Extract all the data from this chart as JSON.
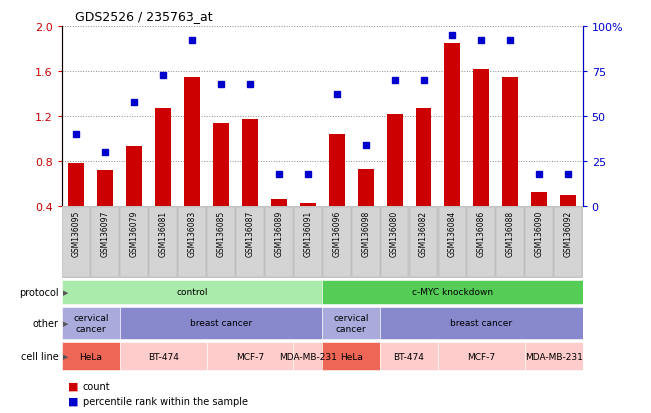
{
  "title": "GDS2526 / 235763_at",
  "samples": [
    "GSM136095",
    "GSM136097",
    "GSM136079",
    "GSM136081",
    "GSM136083",
    "GSM136085",
    "GSM136087",
    "GSM136089",
    "GSM136091",
    "GSM136096",
    "GSM136098",
    "GSM136080",
    "GSM136082",
    "GSM136084",
    "GSM136086",
    "GSM136088",
    "GSM136090",
    "GSM136092"
  ],
  "count_values": [
    0.78,
    0.72,
    0.93,
    1.27,
    1.55,
    1.14,
    1.17,
    0.46,
    0.43,
    1.04,
    0.73,
    1.22,
    1.27,
    1.85,
    1.62,
    1.55,
    0.52,
    0.5
  ],
  "percentile_values": [
    40,
    30,
    58,
    73,
    92,
    68,
    68,
    18,
    18,
    62,
    34,
    70,
    70,
    95,
    92,
    92,
    18,
    18
  ],
  "ylim": [
    0.4,
    2.0
  ],
  "yticks_left": [
    0.4,
    0.8,
    1.2,
    1.6,
    2.0
  ],
  "yticks_right": [
    0,
    25,
    50,
    75,
    100
  ],
  "bar_color": "#cc0000",
  "dot_color": "#0000cc",
  "plot_bg": "#ffffff",
  "xlabel_bg": "#cccccc",
  "protocol_row": {
    "label": "protocol",
    "groups": [
      {
        "text": "control",
        "start": 0,
        "end": 9,
        "color": "#aaeaaa"
      },
      {
        "text": "c-MYC knockdown",
        "start": 9,
        "end": 18,
        "color": "#55cc55"
      }
    ]
  },
  "other_row": {
    "label": "other",
    "groups": [
      {
        "text": "cervical\ncancer",
        "start": 0,
        "end": 2,
        "color": "#aaaadd"
      },
      {
        "text": "breast cancer",
        "start": 2,
        "end": 9,
        "color": "#8888cc"
      },
      {
        "text": "cervical\ncancer",
        "start": 9,
        "end": 11,
        "color": "#aaaadd"
      },
      {
        "text": "breast cancer",
        "start": 11,
        "end": 18,
        "color": "#8888cc"
      }
    ]
  },
  "cellline_row": {
    "label": "cell line",
    "groups": [
      {
        "text": "HeLa",
        "start": 0,
        "end": 2,
        "color": "#ee6655"
      },
      {
        "text": "BT-474",
        "start": 2,
        "end": 5,
        "color": "#ffcccc"
      },
      {
        "text": "MCF-7",
        "start": 5,
        "end": 8,
        "color": "#ffcccc"
      },
      {
        "text": "MDA-MB-231",
        "start": 8,
        "end": 9,
        "color": "#ffcccc"
      },
      {
        "text": "HeLa",
        "start": 9,
        "end": 11,
        "color": "#ee6655"
      },
      {
        "text": "BT-474",
        "start": 11,
        "end": 13,
        "color": "#ffcccc"
      },
      {
        "text": "MCF-7",
        "start": 13,
        "end": 16,
        "color": "#ffcccc"
      },
      {
        "text": "MDA-MB-231",
        "start": 16,
        "end": 18,
        "color": "#ffcccc"
      }
    ]
  }
}
